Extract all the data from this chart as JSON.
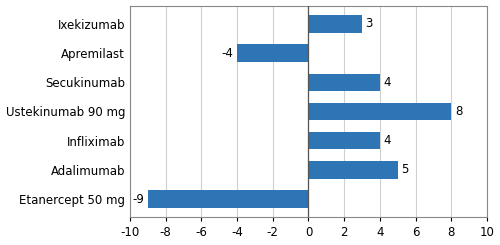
{
  "categories": [
    "Etanercept 50 mg",
    "Adalimumab",
    "Infliximab",
    "Ustekinumab 90 mg",
    "Secukinumab",
    "Apremilast",
    "Ixekizumab"
  ],
  "values": [
    -9,
    5,
    4,
    8,
    4,
    -4,
    3
  ],
  "bar_color": "#2E75B6",
  "xlim": [
    -10,
    10
  ],
  "xticks": [
    -10,
    -8,
    -6,
    -4,
    -2,
    0,
    2,
    4,
    6,
    8,
    10
  ],
  "label_fontsize": 8.5,
  "tick_fontsize": 8.5,
  "bar_height": 0.6,
  "value_label_fontsize": 8.5,
  "grid_color": "#D0D0D0",
  "spine_color": "#888888",
  "figsize": [
    5.0,
    2.45
  ],
  "dpi": 100
}
